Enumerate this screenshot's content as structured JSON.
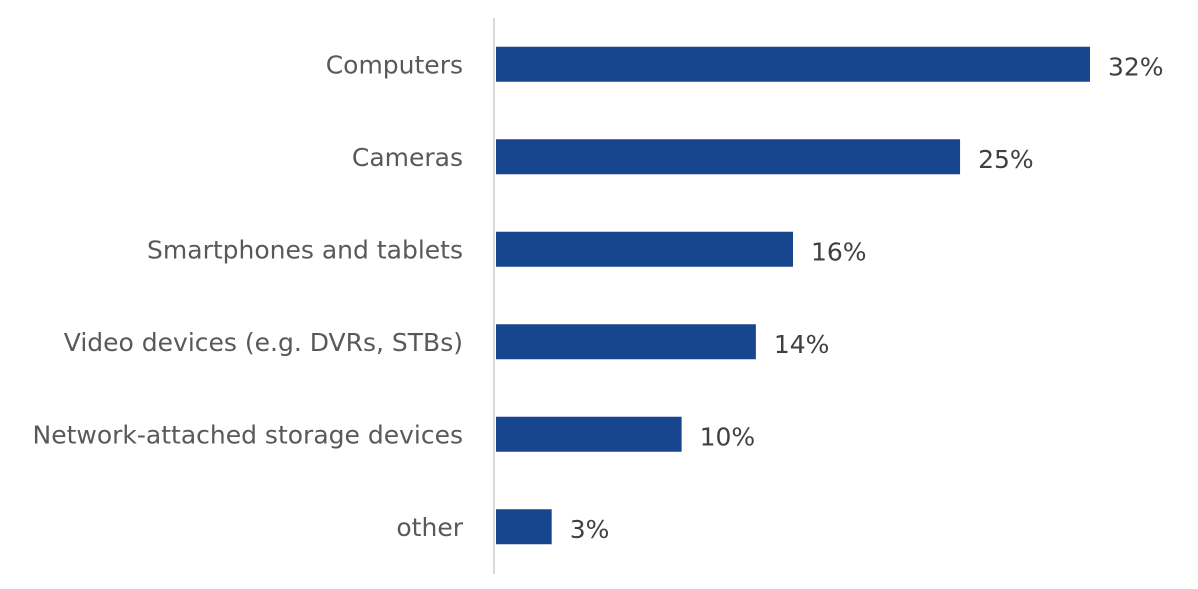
{
  "chart_data": {
    "type": "bar",
    "orientation": "horizontal",
    "title": "",
    "xlabel": "",
    "ylabel": "",
    "categories": [
      "Computers",
      "Cameras",
      "Smartphones and tablets",
      "Video devices (e.g. DVRs, STBs)",
      "Network-attached storage devices",
      "other"
    ],
    "values": [
      32,
      25,
      16,
      14,
      10,
      3
    ],
    "data_labels": [
      "32%",
      "25%",
      "16%",
      "14%",
      "10%",
      "3%"
    ],
    "xlim": [
      0,
      32
    ],
    "grid": false,
    "legend": "none",
    "bar_color": "#17468E",
    "axis_color": "#D9D9D9"
  }
}
